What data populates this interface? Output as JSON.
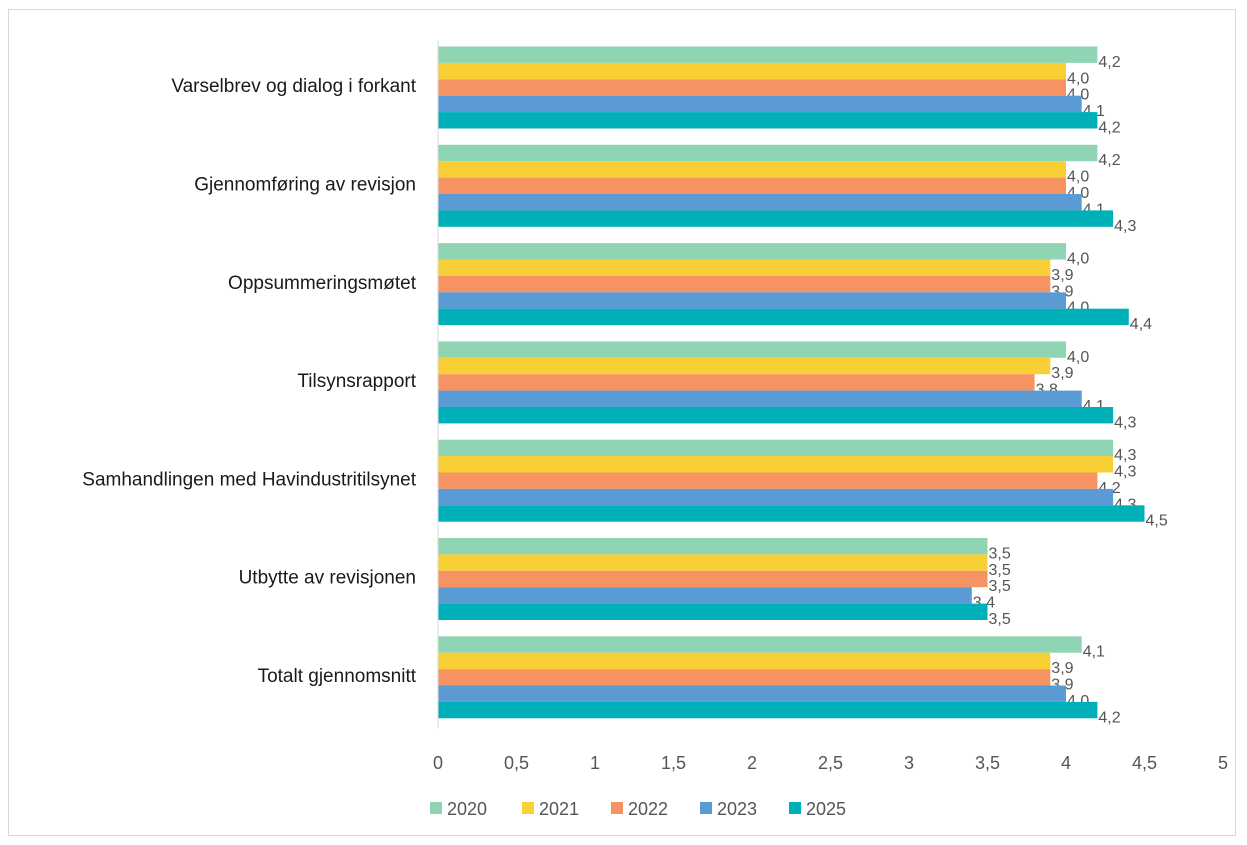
{
  "chart_data": {
    "type": "bar",
    "orientation": "horizontal",
    "categories": [
      "Varselbrev og dialog i forkant",
      "Gjennomføring av revisjon",
      "Oppsummeringsmøtet",
      "Tilsynsrapport",
      "Samhandlingen med Havindustritilsynet",
      "Utbytte av revisjonen",
      "Totalt gjennomsnitt"
    ],
    "series": [
      {
        "name": "2020",
        "color": "#8fd5b4",
        "values": [
          4.2,
          4.2,
          4.0,
          4.0,
          4.3,
          3.5,
          4.1
        ]
      },
      {
        "name": "2021",
        "color": "#f9cf36",
        "values": [
          4.0,
          4.0,
          3.9,
          3.9,
          4.3,
          3.5,
          3.9
        ]
      },
      {
        "name": "2022",
        "color": "#f59462",
        "values": [
          4.0,
          4.0,
          3.9,
          3.8,
          4.2,
          3.5,
          3.9
        ]
      },
      {
        "name": "2023",
        "color": "#5b9bd5",
        "values": [
          4.1,
          4.1,
          4.0,
          4.1,
          4.3,
          3.4,
          4.0
        ]
      },
      {
        "name": "2025",
        "color": "#00b0b9",
        "values": [
          4.2,
          4.3,
          4.4,
          4.3,
          4.5,
          3.5,
          4.2
        ]
      }
    ],
    "data_labels": [
      [
        "4,2",
        "4,0",
        "4,0",
        "4,1",
        "4,2"
      ],
      [
        "4,2",
        "4,0",
        "4,0",
        "4,1",
        "4,3"
      ],
      [
        "4,0",
        "3,9",
        "3,9",
        "4,0",
        "4,4"
      ],
      [
        "4,0",
        "3,9",
        "3,8",
        "4,1",
        "4,3"
      ],
      [
        "4,3",
        "4,3",
        "4,2",
        "4,3",
        "4,5"
      ],
      [
        "3,5",
        "3,5",
        "3,5",
        "3,4",
        "3,5"
      ],
      [
        "4,1",
        "3,9",
        "3,9",
        "4,0",
        "4,2"
      ]
    ],
    "xlim": [
      0,
      5
    ],
    "xticks": [
      0,
      0.5,
      1,
      1.5,
      2,
      2.5,
      3,
      3.5,
      4,
      4.5,
      5
    ],
    "xtick_labels": [
      "0",
      "0,5",
      "1",
      "1,5",
      "2",
      "2,5",
      "3",
      "3,5",
      "4",
      "4,5",
      "5"
    ],
    "grid": false,
    "legend_position": "bottom",
    "title": "",
    "xlabel": "",
    "ylabel": ""
  }
}
